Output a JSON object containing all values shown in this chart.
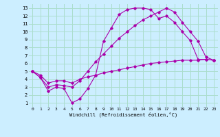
{
  "xlabel": "Windchill (Refroidissement éolien,°C)",
  "bg_color": "#cceeff",
  "grid_color": "#aaddcc",
  "line_color": "#aa00aa",
  "x_ticks": [
    0,
    1,
    2,
    3,
    4,
    5,
    6,
    7,
    8,
    9,
    10,
    11,
    12,
    13,
    14,
    15,
    16,
    17,
    18,
    19,
    20,
    21,
    22,
    23
  ],
  "y_ticks": [
    1,
    2,
    3,
    4,
    5,
    6,
    7,
    8,
    9,
    10,
    11,
    12,
    13
  ],
  "xlim": [
    -0.5,
    23.5
  ],
  "ylim": [
    0.5,
    13.5
  ],
  "line1_x": [
    0,
    1,
    2,
    3,
    4,
    5,
    6,
    7,
    8,
    9,
    10,
    11,
    12,
    13,
    14,
    15,
    16,
    17,
    18,
    19,
    20,
    21,
    22,
    23
  ],
  "line1_y": [
    5.0,
    4.2,
    2.5,
    3.0,
    2.8,
    1.0,
    1.5,
    2.8,
    4.5,
    8.8,
    10.5,
    12.2,
    12.8,
    13.0,
    13.0,
    12.8,
    11.7,
    12.0,
    11.2,
    10.0,
    8.9,
    6.5,
    6.5,
    6.4
  ],
  "line2_x": [
    0,
    1,
    2,
    3,
    4,
    5,
    6,
    7,
    8,
    9,
    10,
    11,
    12,
    13,
    14,
    15,
    16,
    17,
    18,
    19,
    20,
    21,
    22,
    23
  ],
  "line2_y": [
    5.0,
    4.2,
    3.0,
    3.3,
    3.2,
    3.0,
    3.8,
    5.0,
    6.2,
    7.2,
    8.2,
    9.2,
    10.0,
    10.8,
    11.5,
    12.0,
    12.5,
    13.0,
    12.5,
    11.2,
    10.0,
    8.8,
    6.8,
    6.4
  ],
  "line3_x": [
    0,
    1,
    2,
    3,
    4,
    5,
    6,
    7,
    8,
    9,
    10,
    11,
    12,
    13,
    14,
    15,
    16,
    17,
    18,
    19,
    20,
    21,
    22,
    23
  ],
  "line3_y": [
    5.0,
    4.5,
    3.5,
    3.8,
    3.8,
    3.5,
    4.0,
    4.3,
    4.5,
    4.8,
    5.0,
    5.2,
    5.4,
    5.6,
    5.8,
    6.0,
    6.1,
    6.2,
    6.3,
    6.4,
    6.4,
    6.4,
    6.5,
    6.4
  ]
}
